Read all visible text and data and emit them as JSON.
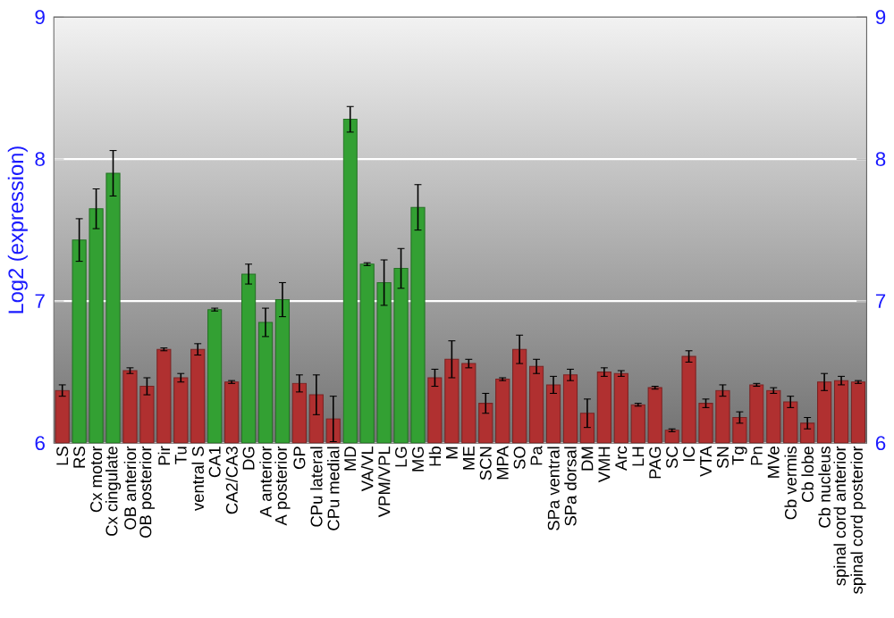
{
  "chart_data": {
    "type": "bar",
    "ylabel": "Log2 (expression)",
    "categories": [
      "LS",
      "RS",
      "Cx motor",
      "Cx cingulate",
      "OB anterior",
      "OB posterior",
      "Pir",
      "Tu",
      "ventral S",
      "CA1",
      "CA2/CA3",
      "DG",
      "A anterior",
      "A posterior",
      "GP",
      "CPu lateral",
      "CPu medial",
      "MD",
      "VA/VL",
      "VPM/VPL",
      "LG",
      "MG",
      "Hb",
      "M",
      "ME",
      "SCN",
      "MPA",
      "SO",
      "Pa",
      "SPa ventral",
      "SPa dorsal",
      "DM",
      "VMH",
      "Arc",
      "LH",
      "PAG",
      "SC",
      "IC",
      "VTA",
      "SN",
      "Tg",
      "Pn",
      "MVe",
      "Cb vermis",
      "Cb lobe",
      "Cb nucleus",
      "spinal cord anterior",
      "spinal cord posterior"
    ],
    "values": [
      6.37,
      7.43,
      7.65,
      7.9,
      6.51,
      6.4,
      6.66,
      6.46,
      6.66,
      6.94,
      6.43,
      7.19,
      6.85,
      7.01,
      6.42,
      6.34,
      6.17,
      8.28,
      7.26,
      7.13,
      7.23,
      7.66,
      6.46,
      6.59,
      6.56,
      6.28,
      6.45,
      6.66,
      6.54,
      6.41,
      6.48,
      6.21,
      6.5,
      6.49,
      6.27,
      6.39,
      6.09,
      6.61,
      6.28,
      6.37,
      6.18,
      6.41,
      6.37,
      6.29,
      6.14,
      6.43,
      6.44,
      6.43
    ],
    "errors": [
      0.04,
      0.15,
      0.14,
      0.16,
      0.02,
      0.06,
      0.01,
      0.03,
      0.04,
      0.01,
      0.01,
      0.07,
      0.1,
      0.12,
      0.06,
      0.14,
      0.16,
      0.09,
      0.01,
      0.16,
      0.14,
      0.16,
      0.06,
      0.13,
      0.03,
      0.07,
      0.01,
      0.1,
      0.05,
      0.06,
      0.04,
      0.1,
      0.03,
      0.02,
      0.01,
      0.01,
      0.01,
      0.04,
      0.03,
      0.04,
      0.04,
      0.01,
      0.02,
      0.04,
      0.04,
      0.06,
      0.03,
      0.01
    ],
    "colors": [
      "#b03030",
      "#33a033",
      "#33a033",
      "#33a033",
      "#b03030",
      "#b03030",
      "#b03030",
      "#b03030",
      "#b03030",
      "#33a033",
      "#b03030",
      "#33a033",
      "#33a033",
      "#33a033",
      "#b03030",
      "#b03030",
      "#b03030",
      "#33a033",
      "#33a033",
      "#33a033",
      "#33a033",
      "#33a033",
      "#b03030",
      "#b03030",
      "#b03030",
      "#b03030",
      "#b03030",
      "#b03030",
      "#b03030",
      "#b03030",
      "#b03030",
      "#b03030",
      "#b03030",
      "#b03030",
      "#b03030",
      "#b03030",
      "#b03030",
      "#b03030",
      "#b03030",
      "#b03030",
      "#b03030",
      "#b03030",
      "#b03030",
      "#b03030",
      "#b03030",
      "#b03030",
      "#b03030",
      "#b03030"
    ],
    "ylim": [
      6,
      9
    ],
    "yticks": [
      6,
      7,
      8,
      9
    ],
    "y2lim": [
      6,
      9
    ],
    "y2ticks": [
      6,
      7,
      8,
      9
    ],
    "grid": "y"
  }
}
